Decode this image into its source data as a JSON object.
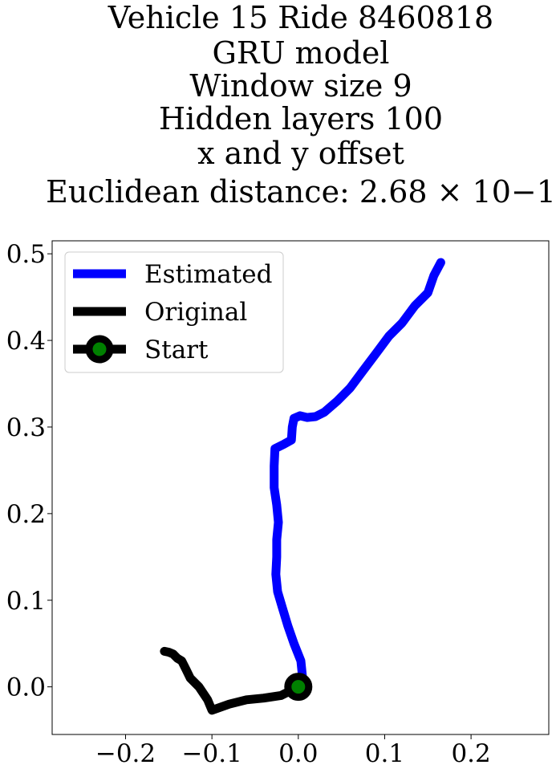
{
  "chart_data": {
    "type": "line",
    "title_lines": [
      "Vehicle 15 Ride 8460818",
      "GRU model",
      "Window size 9",
      "Hidden layers 100",
      "x and y offset",
      "Euclidean distance: 2.68 × 10−1"
    ],
    "xlabel": "",
    "ylabel": "",
    "xlim": [
      -0.285,
      0.29
    ],
    "ylim": [
      -0.055,
      0.515
    ],
    "xticks": [
      -0.2,
      -0.1,
      0.0,
      0.1,
      0.2
    ],
    "xtick_labels": [
      "−0.2",
      "−0.1",
      "0.0",
      "0.1",
      "0.2"
    ],
    "yticks": [
      0.0,
      0.1,
      0.2,
      0.3,
      0.4,
      0.5
    ],
    "ytick_labels": [
      "0.0",
      "0.1",
      "0.2",
      "0.3",
      "0.4",
      "0.5"
    ],
    "grid": false,
    "legend_position": "upper-left",
    "series": [
      {
        "name": "Estimated",
        "color": "#0000ff",
        "points": [
          [
            0.0,
            0.0
          ],
          [
            0.005,
            0.01
          ],
          [
            0.003,
            0.03
          ],
          [
            -0.005,
            0.05
          ],
          [
            -0.012,
            0.07
          ],
          [
            -0.018,
            0.09
          ],
          [
            -0.024,
            0.11
          ],
          [
            -0.026,
            0.13
          ],
          [
            -0.025,
            0.15
          ],
          [
            -0.025,
            0.17
          ],
          [
            -0.023,
            0.19
          ],
          [
            -0.025,
            0.21
          ],
          [
            -0.028,
            0.23
          ],
          [
            -0.028,
            0.255
          ],
          [
            -0.027,
            0.275
          ],
          [
            -0.017,
            0.28
          ],
          [
            -0.008,
            0.285
          ],
          [
            -0.007,
            0.3
          ],
          [
            -0.005,
            0.31
          ],
          [
            0.002,
            0.313
          ],
          [
            0.01,
            0.311
          ],
          [
            0.02,
            0.312
          ],
          [
            0.03,
            0.317
          ],
          [
            0.045,
            0.33
          ],
          [
            0.06,
            0.345
          ],
          [
            0.075,
            0.365
          ],
          [
            0.09,
            0.385
          ],
          [
            0.105,
            0.405
          ],
          [
            0.12,
            0.42
          ],
          [
            0.135,
            0.44
          ],
          [
            0.15,
            0.455
          ],
          [
            0.157,
            0.475
          ],
          [
            0.165,
            0.49
          ]
        ]
      },
      {
        "name": "Original",
        "color": "#000000",
        "points": [
          [
            0.0,
            0.0
          ],
          [
            -0.02,
            -0.01
          ],
          [
            -0.04,
            -0.013
          ],
          [
            -0.06,
            -0.015
          ],
          [
            -0.08,
            -0.02
          ],
          [
            -0.1,
            -0.027
          ],
          [
            -0.105,
            -0.015
          ],
          [
            -0.115,
            0.0
          ],
          [
            -0.125,
            0.01
          ],
          [
            -0.13,
            0.02
          ],
          [
            -0.135,
            0.03
          ],
          [
            -0.14,
            0.033
          ],
          [
            -0.145,
            0.038
          ],
          [
            -0.15,
            0.04
          ],
          [
            -0.155,
            0.041
          ]
        ]
      }
    ],
    "start_point": {
      "name": "Start",
      "x": 0.0,
      "y": 0.0,
      "marker_color": "#008000",
      "edge_color": "#000000"
    }
  }
}
